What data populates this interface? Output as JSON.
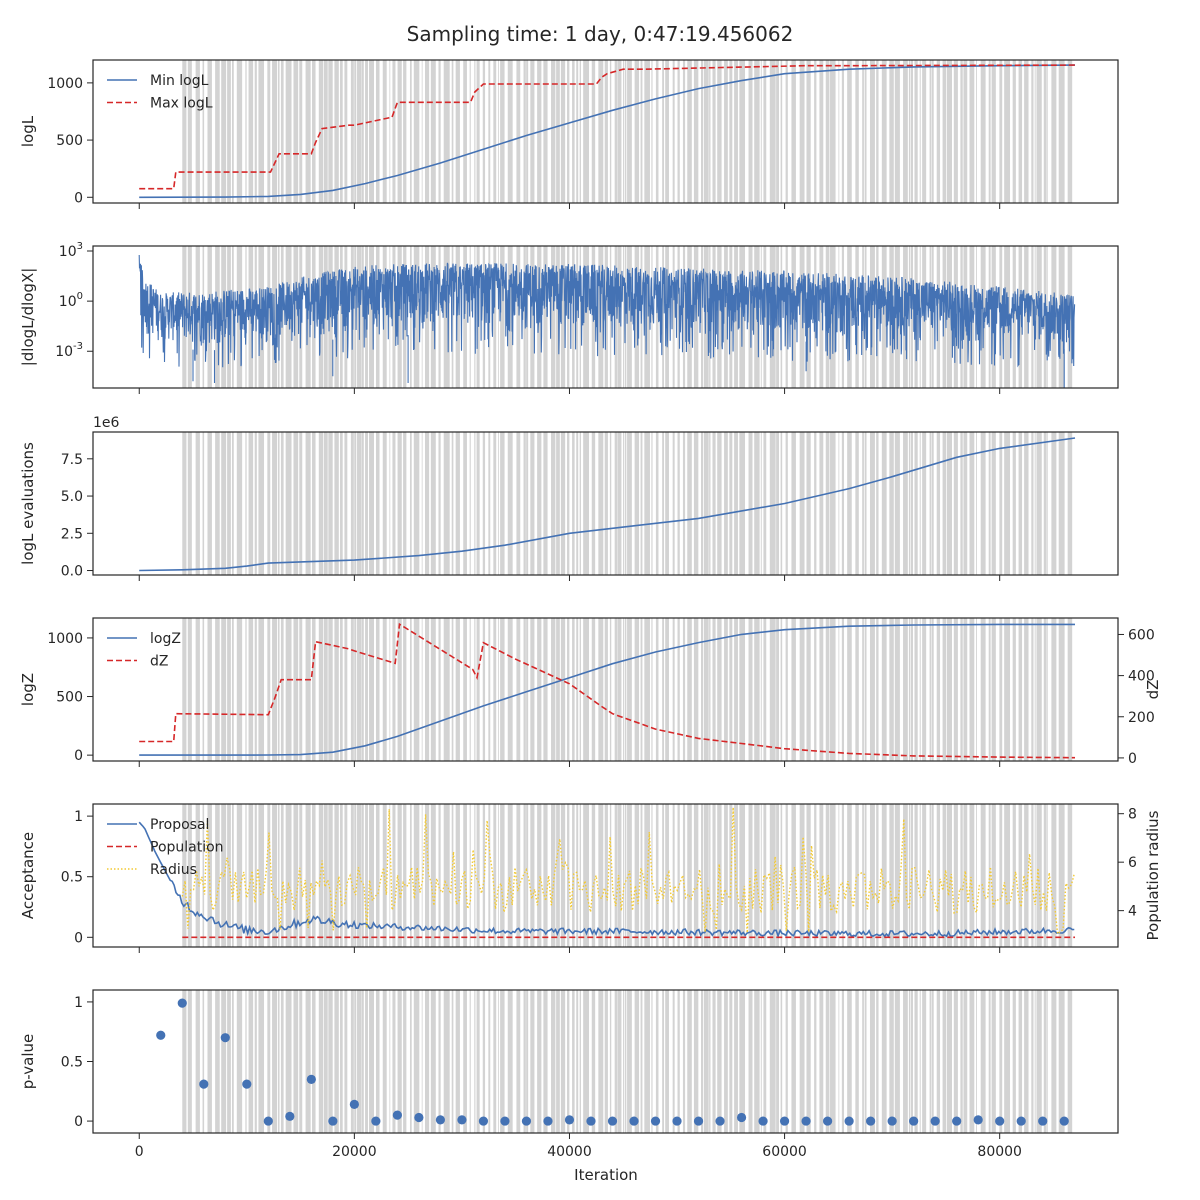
{
  "figure": {
    "title": "Sampling time: 1 day, 0:47:19.456062",
    "xlabel": "Iteration",
    "x_ticks": [
      0,
      20000,
      40000,
      60000,
      80000
    ],
    "xlim": [
      -4300,
      91000
    ]
  },
  "colors": {
    "blue": "#4472b4",
    "red": "#d62728",
    "yellow": "#f2c933",
    "shade": "#d3d3d3",
    "axis": "#262626"
  },
  "chart_data": [
    {
      "type": "line",
      "id": "logl",
      "ylabel": "logL",
      "ylim": [
        -50,
        1200
      ],
      "y_ticks": [
        0,
        500,
        1000
      ],
      "legend": [
        "Min logL",
        "Max logL"
      ],
      "legend_position": "top-left",
      "series": [
        {
          "name": "Min logL",
          "style": "solid",
          "color": "#4472b4",
          "x": [
            0,
            4000,
            8000,
            12000,
            15000,
            18000,
            21000,
            24000,
            28000,
            32000,
            36000,
            40000,
            44000,
            48000,
            52000,
            56000,
            60000,
            66000,
            72000,
            80000,
            87000
          ],
          "y": [
            0,
            1,
            2,
            8,
            25,
            60,
            120,
            190,
            300,
            420,
            540,
            650,
            760,
            860,
            950,
            1020,
            1080,
            1120,
            1140,
            1150,
            1155
          ]
        },
        {
          "name": "Max logL",
          "style": "dashed",
          "color": "#d62728",
          "x": [
            0,
            3200,
            3400,
            12200,
            12600,
            13000,
            16000,
            16400,
            17000,
            19500,
            20000,
            23500,
            24000,
            30800,
            31200,
            32000,
            42500,
            43000,
            43500,
            45000,
            47000,
            62000,
            65000,
            87000
          ],
          "y": [
            75,
            75,
            220,
            220,
            300,
            380,
            380,
            480,
            600,
            630,
            630,
            700,
            830,
            830,
            920,
            990,
            990,
            1050,
            1080,
            1120,
            1120,
            1150,
            1150,
            1155
          ]
        }
      ]
    },
    {
      "type": "line",
      "id": "dlogl",
      "ylabel": "|dlogL/dlogX|",
      "y_scale": "log",
      "ylim_log10": [
        -5.2,
        3.3
      ],
      "y_ticks": [
        "10^3",
        "10^0",
        "10^-3"
      ],
      "y_tick_values": [
        1000,
        1,
        0.001
      ],
      "series": [
        {
          "name": "",
          "style": "noisy-band",
          "color": "#4472b4",
          "x": [
            0,
            400,
            2000,
            6000,
            12000,
            16000,
            20000,
            26000,
            34000,
            42000,
            50000,
            60000,
            70000,
            80000,
            87000
          ],
          "upper_log10": [
            2.8,
            1.5,
            0.5,
            0.6,
            0.9,
            1.6,
            2.1,
            2.3,
            2.3,
            2.2,
            2.0,
            1.8,
            1.5,
            0.9,
            0.4
          ],
          "lower_log10": [
            -1.0,
            -2.2,
            -2.6,
            -3.0,
            -2.6,
            -2.4,
            -2.2,
            -2.0,
            -2.0,
            -2.1,
            -2.2,
            -2.4,
            -2.5,
            -2.7,
            -2.9
          ],
          "spikes": [
            [
              5000,
              -4.8
            ],
            [
              7000,
              -4.9
            ],
            [
              25000,
              -4.9
            ],
            [
              86000,
              -5.2
            ],
            [
              18000,
              -4.5
            ],
            [
              62000,
              -4.2
            ]
          ]
        }
      ]
    },
    {
      "type": "line",
      "id": "nlike",
      "ylabel": "logL evaluations",
      "offset_text": "1e6",
      "ylim": [
        -0.3,
        9.3
      ],
      "y_ticks": [
        0.0,
        2.5,
        5.0,
        7.5
      ],
      "series": [
        {
          "name": "",
          "style": "solid",
          "color": "#4472b4",
          "x": [
            0,
            4000,
            8000,
            10000,
            12000,
            14000,
            20000,
            26000,
            30000,
            34000,
            40000,
            46000,
            52000,
            56000,
            60000,
            66000,
            70000,
            76000,
            80000,
            87000
          ],
          "y": [
            0.0,
            0.05,
            0.15,
            0.3,
            0.5,
            0.55,
            0.7,
            1.0,
            1.3,
            1.7,
            2.5,
            3.0,
            3.5,
            4.0,
            4.5,
            5.5,
            6.3,
            7.6,
            8.2,
            8.9
          ]
        }
      ]
    },
    {
      "type": "line",
      "id": "logz",
      "ylabel": "logZ",
      "ylim": [
        -50,
        1170
      ],
      "y_ticks": [
        0,
        500,
        1000
      ],
      "ylabel2": "dZ",
      "ylim2": [
        -15,
        680
      ],
      "y_ticks2": [
        0,
        200,
        400,
        600
      ],
      "legend": [
        "logZ",
        "dZ"
      ],
      "legend_position": "top-left",
      "series": [
        {
          "name": "logZ",
          "style": "solid",
          "color": "#4472b4",
          "axis": "left",
          "x": [
            0,
            8000,
            12000,
            15000,
            18000,
            21000,
            24000,
            28000,
            32000,
            36000,
            40000,
            44000,
            48000,
            52000,
            56000,
            60000,
            66000,
            72000,
            80000,
            87000
          ],
          "y": [
            0,
            0,
            1,
            5,
            25,
            80,
            160,
            290,
            420,
            540,
            660,
            780,
            880,
            960,
            1030,
            1070,
            1100,
            1110,
            1115,
            1115
          ]
        },
        {
          "name": "dZ",
          "style": "dashed",
          "color": "#d62728",
          "axis": "right",
          "x": [
            0,
            3200,
            3400,
            12000,
            12600,
            13200,
            16000,
            16400,
            19500,
            20000,
            23800,
            24200,
            31000,
            31400,
            32000,
            35000,
            40000,
            43000,
            44000,
            48000,
            52000,
            56000,
            60000,
            66000,
            72000,
            80000,
            87000
          ],
          "y": [
            80,
            80,
            215,
            210,
            290,
            380,
            380,
            565,
            530,
            520,
            460,
            650,
            430,
            390,
            560,
            480,
            360,
            250,
            215,
            140,
            95,
            70,
            45,
            22,
            10,
            4,
            1
          ]
        }
      ]
    },
    {
      "type": "line",
      "id": "accept",
      "ylabel": "Acceptance",
      "ylim": [
        -0.08,
        1.1
      ],
      "y_ticks": [
        0.0,
        0.5,
        1.0
      ],
      "ylabel2": "Population radius",
      "ylim2": [
        2.5,
        8.4
      ],
      "y_ticks2": [
        4,
        6,
        8
      ],
      "legend": [
        "Proposal",
        "Population",
        "Radius"
      ],
      "legend_position": "top-left",
      "series": [
        {
          "name": "Proposal",
          "style": "solid",
          "color": "#4472b4",
          "axis": "left",
          "x": [
            0,
            500,
            1500,
            3000,
            4000,
            5000,
            6000,
            8000,
            10000,
            12000,
            16000,
            20000,
            26000,
            34000,
            44000,
            54000,
            64000,
            74000,
            87000
          ],
          "y": [
            0.95,
            0.9,
            0.7,
            0.45,
            0.3,
            0.22,
            0.18,
            0.1,
            0.06,
            0.05,
            0.15,
            0.1,
            0.08,
            0.05,
            0.05,
            0.04,
            0.03,
            0.03,
            0.06
          ]
        },
        {
          "name": "Population",
          "style": "dashed",
          "color": "#d62728",
          "axis": "left",
          "x": [
            4000,
            87000
          ],
          "y": [
            0.0,
            0.0
          ]
        },
        {
          "name": "Radius",
          "style": "dotted",
          "color": "#f2c933",
          "axis": "right",
          "x": [
            4000,
            87000
          ],
          "range": [
            3.0,
            8.3
          ],
          "mean": 4.7
        }
      ]
    },
    {
      "type": "scatter",
      "id": "pvalue",
      "ylabel": "p-value",
      "ylim": [
        -0.1,
        1.1
      ],
      "y_ticks": [
        0.0,
        0.5,
        1.0
      ],
      "series": [
        {
          "name": "",
          "color": "#4472b4",
          "x": [
            2000,
            4000,
            6000,
            8000,
            10000,
            12000,
            14000,
            16000,
            18000,
            20000,
            22000,
            24000,
            26000,
            28000,
            30000,
            32000,
            34000,
            36000,
            38000,
            40000,
            42000,
            44000,
            46000,
            48000,
            50000,
            52000,
            54000,
            56000,
            58000,
            60000,
            62000,
            64000,
            66000,
            68000,
            70000,
            72000,
            74000,
            76000,
            78000,
            80000,
            82000,
            84000,
            86000
          ],
          "y": [
            0.72,
            0.99,
            0.31,
            0.7,
            0.31,
            0.0,
            0.04,
            0.35,
            0.0,
            0.14,
            0.0,
            0.05,
            0.03,
            0.01,
            0.01,
            0.0,
            0.0,
            0.0,
            0.0,
            0.01,
            0.0,
            0.0,
            0.0,
            0.0,
            0.0,
            0.0,
            0.0,
            0.03,
            0.0,
            0.0,
            0.0,
            0.0,
            0.0,
            0.0,
            0.0,
            0.0,
            0.0,
            0.0,
            0.01,
            0.0,
            0.0,
            0.0,
            0.0
          ]
        }
      ]
    }
  ],
  "shading": {
    "color": "#d3d3d3",
    "start": 4000,
    "end": 86900,
    "note_free_band_density": 0.55
  }
}
